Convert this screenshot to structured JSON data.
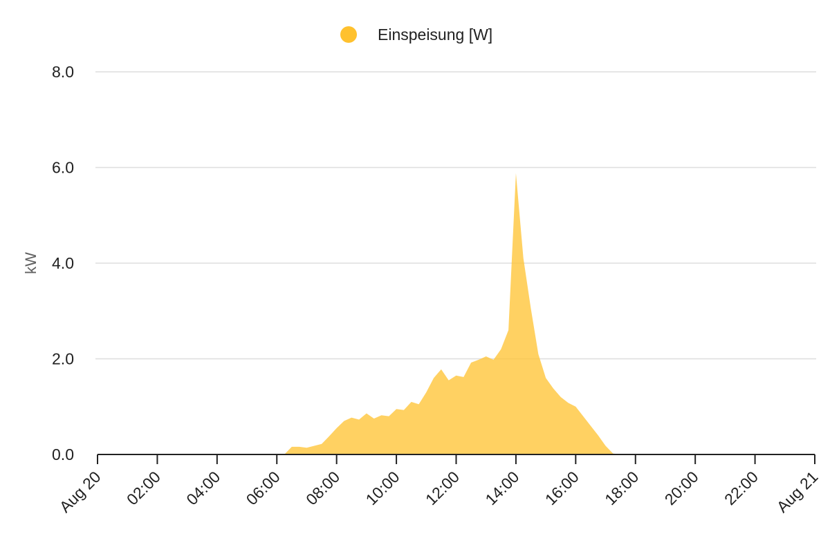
{
  "chart_data": {
    "type": "area",
    "legend": {
      "placement": "top-center",
      "label": "Einspeisung [W]"
    },
    "ylabel": "kW",
    "ylim": [
      0,
      8
    ],
    "yticks": [
      0,
      2,
      4,
      6,
      8
    ],
    "ytick_labels": [
      "0.0",
      "2.0",
      "4.0",
      "6.0",
      "8.0"
    ],
    "xlim": [
      "2023-08-20T00:00",
      "2023-08-21T00:00"
    ],
    "xticks": [
      "2023-08-20T00:00",
      "2023-08-20T02:00",
      "2023-08-20T04:00",
      "2023-08-20T06:00",
      "2023-08-20T08:00",
      "2023-08-20T10:00",
      "2023-08-20T12:00",
      "2023-08-20T14:00",
      "2023-08-20T16:00",
      "2023-08-20T18:00",
      "2023-08-20T20:00",
      "2023-08-20T22:00",
      "2023-08-21T00:00"
    ],
    "xtick_labels": [
      "Aug 20",
      "02:00",
      "04:00",
      "06:00",
      "08:00",
      "10:00",
      "12:00",
      "14:00",
      "16:00",
      "18:00",
      "20:00",
      "22:00",
      "Aug 21"
    ],
    "grid": true,
    "series": [
      {
        "name": "Einspeisung [W]",
        "color": "#FFC12E",
        "fill_opacity": 0.75,
        "x": [
          "2023-08-20T00:00",
          "2023-08-20T06:15",
          "2023-08-20T06:30",
          "2023-08-20T06:45",
          "2023-08-20T07:00",
          "2023-08-20T07:15",
          "2023-08-20T07:30",
          "2023-08-20T07:45",
          "2023-08-20T08:00",
          "2023-08-20T08:15",
          "2023-08-20T08:30",
          "2023-08-20T08:45",
          "2023-08-20T09:00",
          "2023-08-20T09:15",
          "2023-08-20T09:30",
          "2023-08-20T09:45",
          "2023-08-20T10:00",
          "2023-08-20T10:15",
          "2023-08-20T10:30",
          "2023-08-20T10:45",
          "2023-08-20T11:00",
          "2023-08-20T11:15",
          "2023-08-20T11:30",
          "2023-08-20T11:45",
          "2023-08-20T12:00",
          "2023-08-20T12:15",
          "2023-08-20T12:30",
          "2023-08-20T12:45",
          "2023-08-20T13:00",
          "2023-08-20T13:15",
          "2023-08-20T13:30",
          "2023-08-20T13:45",
          "2023-08-20T14:00",
          "2023-08-20T14:15",
          "2023-08-20T14:30",
          "2023-08-20T14:45",
          "2023-08-20T15:00",
          "2023-08-20T15:15",
          "2023-08-20T15:30",
          "2023-08-20T15:45",
          "2023-08-20T16:00",
          "2023-08-20T16:15",
          "2023-08-20T16:30",
          "2023-08-20T16:45",
          "2023-08-20T17:00",
          "2023-08-20T17:15",
          "2023-08-20T17:30",
          "2023-08-21T00:00"
        ],
        "y": [
          0,
          0,
          0.16,
          0.16,
          0.14,
          0.18,
          0.22,
          0.38,
          0.55,
          0.7,
          0.77,
          0.73,
          0.86,
          0.75,
          0.82,
          0.8,
          0.95,
          0.93,
          1.1,
          1.05,
          1.3,
          1.6,
          1.78,
          1.55,
          1.65,
          1.62,
          1.92,
          1.98,
          2.05,
          1.98,
          2.2,
          2.6,
          5.88,
          4.1,
          3.05,
          2.1,
          1.6,
          1.38,
          1.2,
          1.08,
          1.0,
          0.8,
          0.6,
          0.4,
          0.18,
          0.02,
          0,
          0
        ]
      }
    ]
  }
}
